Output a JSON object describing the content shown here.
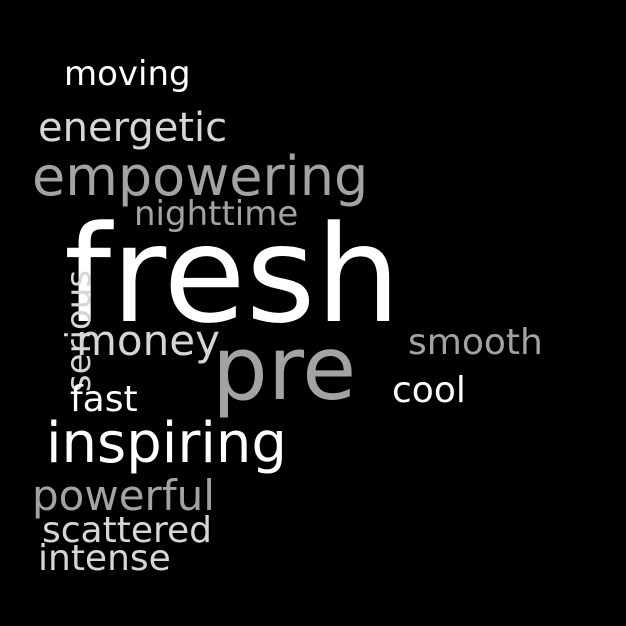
{
  "colors": {
    "background": "#000000",
    "white": "#ffffff",
    "light_gray": "#d6d6d6",
    "gray": "#a3a3a3"
  },
  "words": {
    "moving": "moving",
    "energetic": "energetic",
    "empowering": "empowering",
    "nighttime": "nighttime",
    "fresh": "fresh",
    "serious": "serious",
    "money": "money",
    "pre": "pre",
    "smooth": "smooth",
    "cool": "cool",
    "fast": "fast",
    "inspiring": "inspiring",
    "powerful": "powerful",
    "scattered": "scattered",
    "intense": "intense"
  }
}
